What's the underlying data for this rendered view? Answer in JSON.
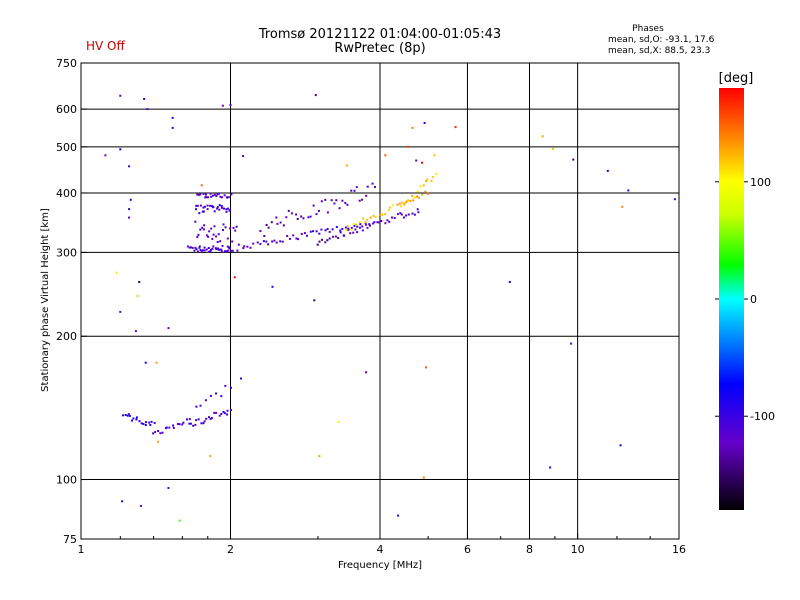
{
  "header": {
    "status": "HV Off",
    "title_line1": "Tromsø 20121122 01:04:00-01:05:43",
    "title_line2": "RwPretec (8p)",
    "stats_title": "Phases",
    "stats_o": "mean, sd,O: -93.1, 17.6",
    "stats_x": "mean, sd,X:  88.5, 23.3"
  },
  "colors": {
    "status": "#cc0000",
    "axis": "#000000",
    "grid": "#000000"
  },
  "chart_data": {
    "type": "scatter",
    "xlabel": "Frequency [MHz]",
    "ylabel": "Stationary phase Virtual Height [km]",
    "x_scale": "log",
    "y_scale": "log",
    "xlim": [
      1,
      16
    ],
    "ylim": [
      75,
      750
    ],
    "x_ticks": [
      1,
      2,
      4,
      6,
      8,
      10,
      16
    ],
    "x_tick_labels": [
      "1",
      "2",
      "4",
      "6",
      "8",
      "10",
      "16"
    ],
    "y_ticks": [
      75,
      100,
      200,
      300,
      400,
      500,
      600,
      750
    ],
    "y_tick_labels": [
      "75",
      "100",
      "200",
      "300",
      "400",
      "500",
      "600",
      "750"
    ],
    "grid": true,
    "colorbar": {
      "title": "[deg]",
      "range": [
        -180,
        180
      ],
      "ticks": [
        100,
        0,
        -100
      ],
      "tick_labels": [
        "100",
        "0",
        "-100"
      ]
    },
    "series": [
      {
        "values": [
          [
            1.12,
            480,
            -120
          ],
          [
            1.2,
            640,
            -115
          ],
          [
            1.34,
            630,
            -100
          ],
          [
            1.36,
            600,
            -110
          ],
          [
            1.53,
            575,
            -95
          ],
          [
            1.53,
            548,
            -100
          ],
          [
            1.25,
            455,
            -95
          ],
          [
            1.25,
            370,
            -100
          ],
          [
            1.25,
            355,
            -110
          ],
          [
            1.18,
            272,
            110
          ],
          [
            1.31,
            260,
            -150
          ],
          [
            1.3,
            243,
            60
          ],
          [
            1.2,
            225,
            -110
          ],
          [
            1.29,
            205,
            -110
          ],
          [
            1.5,
            208,
            -120
          ],
          [
            1.21,
            90,
            -100
          ],
          [
            1.32,
            88,
            -125
          ],
          [
            1.5,
            96,
            -115
          ],
          [
            1.58,
            82,
            40
          ],
          [
            1.75,
            415,
            150
          ],
          [
            1.93,
            610,
            -120
          ],
          [
            2.0,
            612,
            -110
          ],
          [
            2.12,
            478,
            -140
          ],
          [
            2.04,
            266,
            180
          ],
          [
            2.1,
            163,
            -100
          ],
          [
            2.43,
            254,
            -90
          ],
          [
            2.95,
            238,
            -150
          ],
          [
            2.97,
            642,
            -140
          ],
          [
            3.02,
            112,
            130
          ],
          [
            3.3,
            132,
            80
          ],
          [
            3.43,
            457,
            130
          ],
          [
            3.75,
            168,
            -110
          ],
          [
            4.1,
            480,
            150
          ],
          [
            4.55,
            500,
            160
          ],
          [
            4.65,
            548,
            140
          ],
          [
            4.92,
            561,
            -90
          ],
          [
            4.73,
            468,
            -110
          ],
          [
            4.86,
            463,
            180
          ],
          [
            5.68,
            550,
            170
          ],
          [
            4.9,
            101,
            140
          ],
          [
            4.95,
            172,
            150
          ],
          [
            5.15,
            480,
            120
          ],
          [
            7.3,
            260,
            -90
          ],
          [
            8.5,
            526,
            130
          ],
          [
            8.92,
            495,
            120
          ],
          [
            9.7,
            193,
            -100
          ],
          [
            9.8,
            470,
            -150
          ],
          [
            11.5,
            445,
            -80
          ],
          [
            12.2,
            118,
            -70
          ],
          [
            12.3,
            374,
            140
          ],
          [
            12.65,
            405,
            -90
          ],
          [
            15.7,
            388,
            -100
          ],
          [
            1.2,
            494,
            -80
          ],
          [
            1.26,
            387,
            -90
          ],
          [
            1.42,
            176,
            130
          ],
          [
            1.35,
            176,
            -80
          ],
          [
            1.82,
            112,
            130
          ],
          [
            1.43,
            120,
            130
          ],
          [
            8.8,
            106,
            -90
          ],
          [
            4.35,
            84,
            -100
          ]
        ]
      }
    ]
  }
}
